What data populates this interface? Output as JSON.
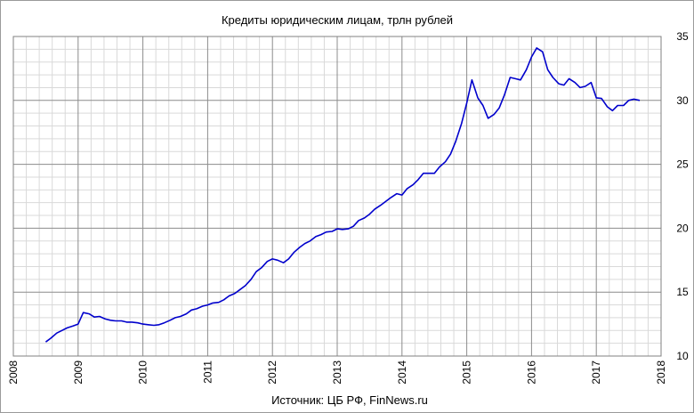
{
  "chart_data": {
    "type": "line",
    "title": "Кредиты юридическим лицам,  трлн рублей",
    "source": "Источник: ЦБ РФ, FinNews.ru",
    "xlabel": "",
    "ylabel": "",
    "xlim": [
      2008,
      2018
    ],
    "ylim": [
      10,
      35
    ],
    "x_ticks": [
      "2008",
      "2009",
      "2010",
      "2011",
      "2012",
      "2013",
      "2014",
      "2015",
      "2016",
      "2017",
      "2018"
    ],
    "y_ticks": [
      "10",
      "15",
      "20",
      "25",
      "30",
      "35"
    ],
    "y_axis_side": "right",
    "grid": true,
    "line_color": "#0000cc",
    "series": [
      {
        "x": [
          2008.5,
          2008.58,
          2008.67,
          2008.75,
          2008.83,
          2008.92,
          2009.0,
          2009.08,
          2009.17,
          2009.25,
          2009.33,
          2009.42,
          2009.5,
          2009.58,
          2009.67,
          2009.75,
          2009.83,
          2009.92,
          2010.0,
          2010.08,
          2010.17,
          2010.25,
          2010.33,
          2010.42,
          2010.5,
          2010.58,
          2010.67,
          2010.75,
          2010.83,
          2010.92,
          2011.0,
          2011.08,
          2011.17,
          2011.25,
          2011.33,
          2011.42,
          2011.5,
          2011.58,
          2011.67,
          2011.75,
          2011.83,
          2011.92,
          2012.0,
          2012.08,
          2012.17,
          2012.25,
          2012.33,
          2012.42,
          2012.5,
          2012.58,
          2012.67,
          2012.75,
          2012.83,
          2012.92,
          2013.0,
          2013.08,
          2013.17,
          2013.25,
          2013.33,
          2013.42,
          2013.5,
          2013.58,
          2013.67,
          2013.75,
          2013.83,
          2013.92,
          2014.0,
          2014.08,
          2014.17,
          2014.25,
          2014.33,
          2014.42,
          2014.5,
          2014.58,
          2014.67,
          2014.75,
          2014.83,
          2014.92,
          2015.0,
          2015.08,
          2015.17,
          2015.25,
          2015.33,
          2015.42,
          2015.5,
          2015.58,
          2015.67,
          2015.75,
          2015.83,
          2015.92,
          2016.0,
          2016.08,
          2016.17,
          2016.25,
          2016.33,
          2016.42,
          2016.5,
          2016.58,
          2016.67,
          2016.75,
          2016.83,
          2016.92,
          2017.0,
          2017.08,
          2017.17,
          2017.25,
          2017.33,
          2017.42,
          2017.5,
          2017.58,
          2017.67
        ],
        "values": [
          11.1,
          11.4,
          11.8,
          12.0,
          12.2,
          12.35,
          12.5,
          13.4,
          13.3,
          13.05,
          13.1,
          12.9,
          12.8,
          12.75,
          12.75,
          12.65,
          12.65,
          12.6,
          12.5,
          12.45,
          12.4,
          12.45,
          12.6,
          12.8,
          13.0,
          13.1,
          13.3,
          13.6,
          13.7,
          13.9,
          14.0,
          14.15,
          14.2,
          14.4,
          14.7,
          14.9,
          15.2,
          15.5,
          16.0,
          16.6,
          16.9,
          17.4,
          17.6,
          17.5,
          17.3,
          17.6,
          18.1,
          18.5,
          18.8,
          19.0,
          19.35,
          19.5,
          19.7,
          19.75,
          19.95,
          19.9,
          19.95,
          20.15,
          20.6,
          20.8,
          21.1,
          21.5,
          21.8,
          22.1,
          22.4,
          22.7,
          22.6,
          23.1,
          23.4,
          23.8,
          24.3,
          24.3,
          24.3,
          24.8,
          25.2,
          25.8,
          26.8,
          28.2,
          29.8,
          31.6,
          30.2,
          29.6,
          28.6,
          28.9,
          29.4,
          30.4,
          31.8,
          31.7,
          31.6,
          32.4,
          33.4,
          34.1,
          33.8,
          32.4,
          31.8,
          31.3,
          31.2,
          31.7,
          31.4,
          31.0,
          31.1,
          31.4,
          30.2,
          30.15,
          29.5,
          29.2,
          29.6,
          29.6,
          30.0,
          30.1,
          30.0
        ]
      }
    ]
  }
}
